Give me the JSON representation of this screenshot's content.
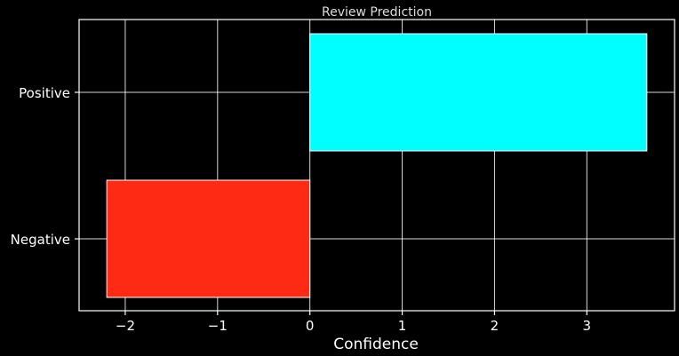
{
  "chart_data": {
    "type": "bar",
    "orientation": "horizontal",
    "title": "Review Prediction",
    "xlabel": "Confidence",
    "ylabel": "",
    "categories": [
      "Positive",
      "Negative"
    ],
    "values": [
      3.65,
      -2.2
    ],
    "colors": [
      "#00ffff",
      "#ff2a14"
    ],
    "xlim": [
      -2.5,
      3.95
    ],
    "xticks": [
      -2,
      -1,
      0,
      1,
      2,
      3
    ],
    "xtick_labels": [
      "−2",
      "−1",
      "0",
      "1",
      "2",
      "3"
    ],
    "grid": true,
    "background": "#000000"
  }
}
